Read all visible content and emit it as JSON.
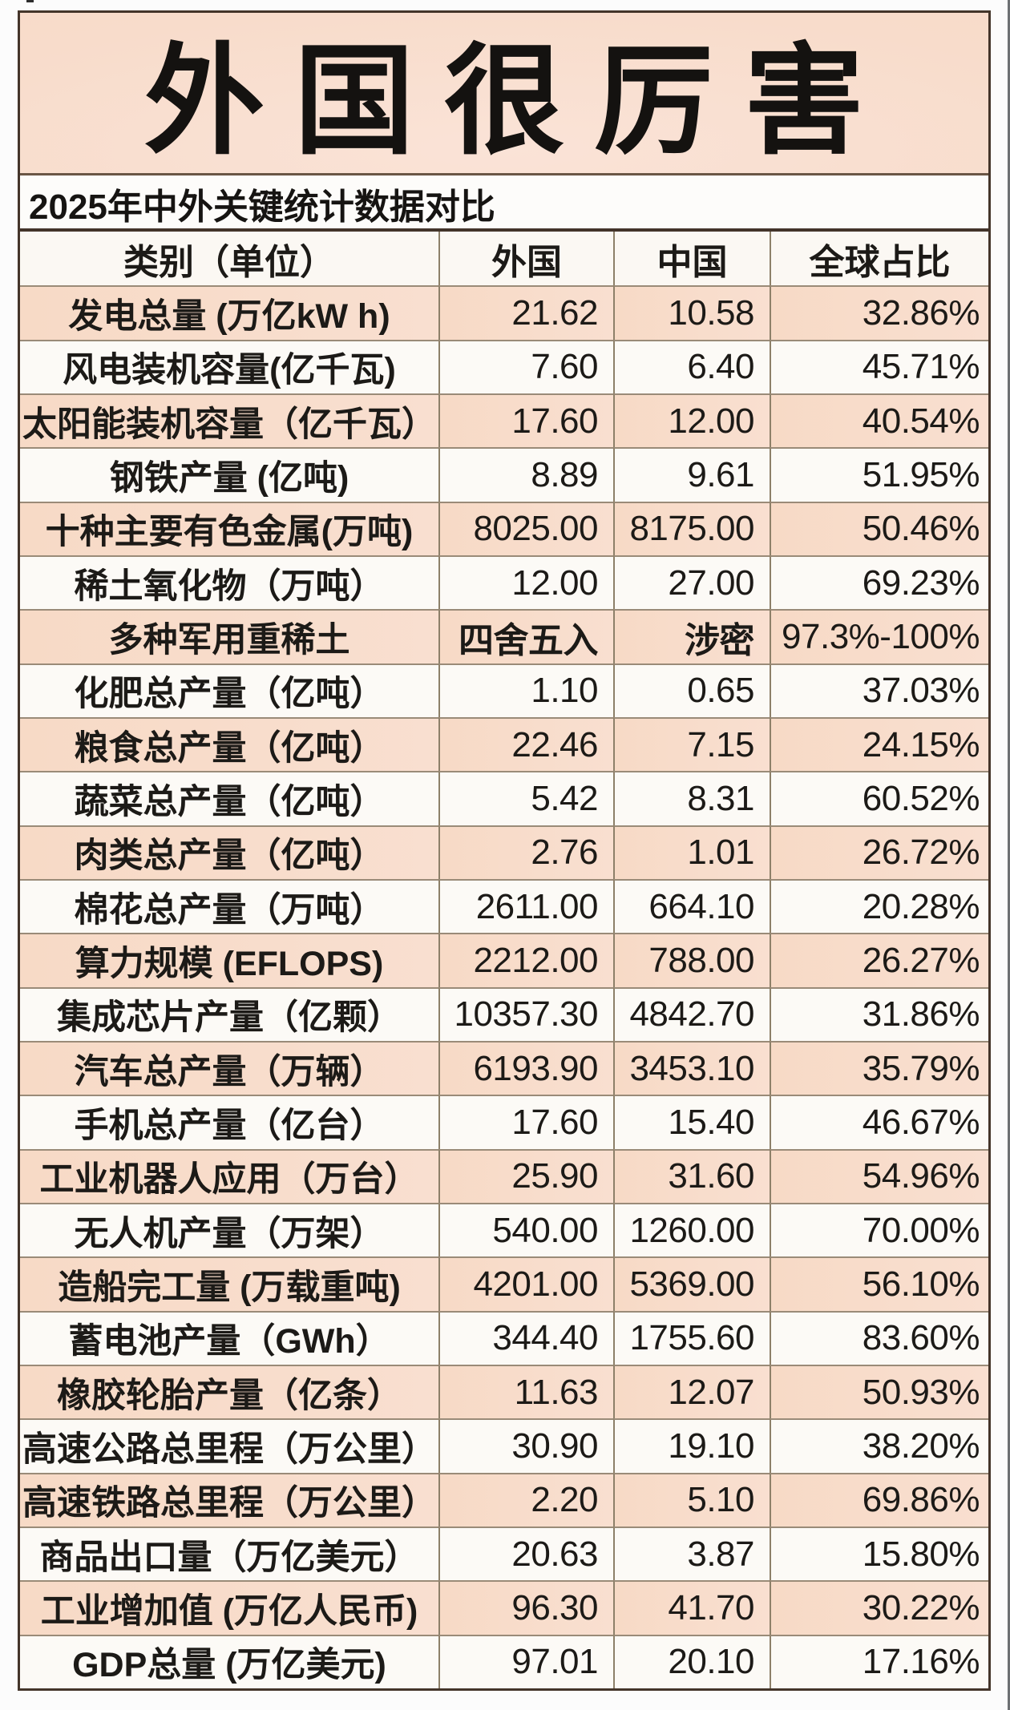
{
  "page": {
    "title": "外国很厉害",
    "subtitle": "2025年中外关键统计数据对比"
  },
  "table": {
    "headers": {
      "category": "类别（单位）",
      "foreign": "外国",
      "china": "中国",
      "global_share": "全球占比"
    },
    "rows": [
      {
        "category": "发电总量 (万亿kW h)",
        "foreign": "21.62",
        "china": "10.58",
        "global_share": "32.86%"
      },
      {
        "category": "风电装机容量(亿千瓦)",
        "foreign": "7.60",
        "china": "6.40",
        "global_share": "45.71%"
      },
      {
        "category": "太阳能装机容量（亿千瓦）",
        "foreign": "17.60",
        "china": "12.00",
        "global_share": "40.54%"
      },
      {
        "category": "钢铁产量 (亿吨)",
        "foreign": "8.89",
        "china": "9.61",
        "global_share": "51.95%"
      },
      {
        "category": "十种主要有色金属(万吨)",
        "foreign": "8025.00",
        "china": "8175.00",
        "global_share": "50.46%"
      },
      {
        "category": "稀土氧化物（万吨）",
        "foreign": "12.00",
        "china": "27.00",
        "global_share": "69.23%"
      },
      {
        "category": "多种军用重稀土",
        "foreign": "四舍五入",
        "china": "涉密",
        "global_share": "97.3%-100%"
      },
      {
        "category": "化肥总产量（亿吨）",
        "foreign": "1.10",
        "china": "0.65",
        "global_share": "37.03%"
      },
      {
        "category": "粮食总产量（亿吨）",
        "foreign": "22.46",
        "china": "7.15",
        "global_share": "24.15%"
      },
      {
        "category": "蔬菜总产量（亿吨）",
        "foreign": "5.42",
        "china": "8.31",
        "global_share": "60.52%"
      },
      {
        "category": "肉类总产量（亿吨）",
        "foreign": "2.76",
        "china": "1.01",
        "global_share": "26.72%"
      },
      {
        "category": "棉花总产量（万吨）",
        "foreign": "2611.00",
        "china": "664.10",
        "global_share": "20.28%"
      },
      {
        "category": "算力规模 (EFLOPS)",
        "foreign": "2212.00",
        "china": "788.00",
        "global_share": "26.27%"
      },
      {
        "category": "集成芯片产量（亿颗）",
        "foreign": "10357.30",
        "china": "4842.70",
        "global_share": "31.86%"
      },
      {
        "category": "汽车总产量（万辆）",
        "foreign": "6193.90",
        "china": "3453.10",
        "global_share": "35.79%"
      },
      {
        "category": "手机总产量（亿台）",
        "foreign": "17.60",
        "china": "15.40",
        "global_share": "46.67%"
      },
      {
        "category": "工业机器人应用（万台）",
        "foreign": "25.90",
        "china": "31.60",
        "global_share": "54.96%"
      },
      {
        "category": "无人机产量（万架）",
        "foreign": "540.00",
        "china": "1260.00",
        "global_share": "70.00%"
      },
      {
        "category": "造船完工量 (万载重吨)",
        "foreign": "4201.00",
        "china": "5369.00",
        "global_share": "56.10%"
      },
      {
        "category": "蓄电池产量（GWh）",
        "foreign": "344.40",
        "china": "1755.60",
        "global_share": "83.60%"
      },
      {
        "category": "橡胶轮胎产量（亿条）",
        "foreign": "11.63",
        "china": "12.07",
        "global_share": "50.93%"
      },
      {
        "category": "高速公路总里程（万公里）",
        "foreign": "30.90",
        "china": "19.10",
        "global_share": "38.20%"
      },
      {
        "category": "高速铁路总里程（万公里）",
        "foreign": "2.20",
        "china": "5.10",
        "global_share": "69.86%"
      },
      {
        "category": "商品出口量（万亿美元）",
        "foreign": "20.63",
        "china": "3.87",
        "global_share": "15.80%"
      },
      {
        "category": "工业增加值 (万亿人民币)",
        "foreign": "96.30",
        "china": "41.70",
        "global_share": "30.22%"
      },
      {
        "category": "GDP总量 (万亿美元)",
        "foreign": "97.01",
        "china": "20.10",
        "global_share": "17.16%"
      }
    ]
  },
  "colors": {
    "page_background": "#fcfcfc",
    "band_peach": "#f8dccb",
    "row_peach": "#f8dcca",
    "row_white": "#fcfaf6",
    "header_row": "#fbf8f3",
    "outer_border": "#44352a",
    "grid_line": "#8d8069",
    "text": "#1c1a17"
  },
  "chart_data": {
    "type": "table",
    "title": "外国很厉害",
    "subtitle": "2025年中外关键统计数据对比",
    "columns": [
      "类别（单位）",
      "外国",
      "中国",
      "全球占比"
    ],
    "rows": [
      [
        "发电总量 (万亿kW h)",
        "21.62",
        "10.58",
        "32.86%"
      ],
      [
        "风电装机容量(亿千瓦)",
        "7.60",
        "6.40",
        "45.71%"
      ],
      [
        "太阳能装机容量（亿千瓦）",
        "17.60",
        "12.00",
        "40.54%"
      ],
      [
        "钢铁产量 (亿吨)",
        "8.89",
        "9.61",
        "51.95%"
      ],
      [
        "十种主要有色金属(万吨)",
        "8025.00",
        "8175.00",
        "50.46%"
      ],
      [
        "稀土氧化物（万吨）",
        "12.00",
        "27.00",
        "69.23%"
      ],
      [
        "多种军用重稀土",
        "四舍五入",
        "涉密",
        "97.3%-100%"
      ],
      [
        "化肥总产量（亿吨）",
        "1.10",
        "0.65",
        "37.03%"
      ],
      [
        "粮食总产量（亿吨）",
        "22.46",
        "7.15",
        "24.15%"
      ],
      [
        "蔬菜总产量（亿吨）",
        "5.42",
        "8.31",
        "60.52%"
      ],
      [
        "肉类总产量（亿吨）",
        "2.76",
        "1.01",
        "26.72%"
      ],
      [
        "棉花总产量（万吨）",
        "2611.00",
        "664.10",
        "20.28%"
      ],
      [
        "算力规模 (EFLOPS)",
        "2212.00",
        "788.00",
        "26.27%"
      ],
      [
        "集成芯片产量（亿颗）",
        "10357.30",
        "4842.70",
        "31.86%"
      ],
      [
        "汽车总产量（万辆）",
        "6193.90",
        "3453.10",
        "35.79%"
      ],
      [
        "手机总产量（亿台）",
        "17.60",
        "15.40",
        "46.67%"
      ],
      [
        "工业机器人应用（万台）",
        "25.90",
        "31.60",
        "54.96%"
      ],
      [
        "无人机产量（万架）",
        "540.00",
        "1260.00",
        "70.00%"
      ],
      [
        "造船完工量 (万载重吨)",
        "4201.00",
        "5369.00",
        "56.10%"
      ],
      [
        "蓄电池产量（GWh）",
        "344.40",
        "1755.60",
        "83.60%"
      ],
      [
        "橡胶轮胎产量（亿条）",
        "11.63",
        "12.07",
        "50.93%"
      ],
      [
        "高速公路总里程（万公里）",
        "30.90",
        "19.10",
        "38.20%"
      ],
      [
        "高速铁路总里程（万公里）",
        "2.20",
        "5.10",
        "69.86%"
      ],
      [
        "商品出口量（万亿美元）",
        "20.63",
        "3.87",
        "15.80%"
      ],
      [
        "工业增加值 (万亿人民币)",
        "96.30",
        "41.70",
        "30.22%"
      ],
      [
        "GDP总量 (万亿美元)",
        "97.01",
        "20.10",
        "17.16%"
      ]
    ]
  }
}
